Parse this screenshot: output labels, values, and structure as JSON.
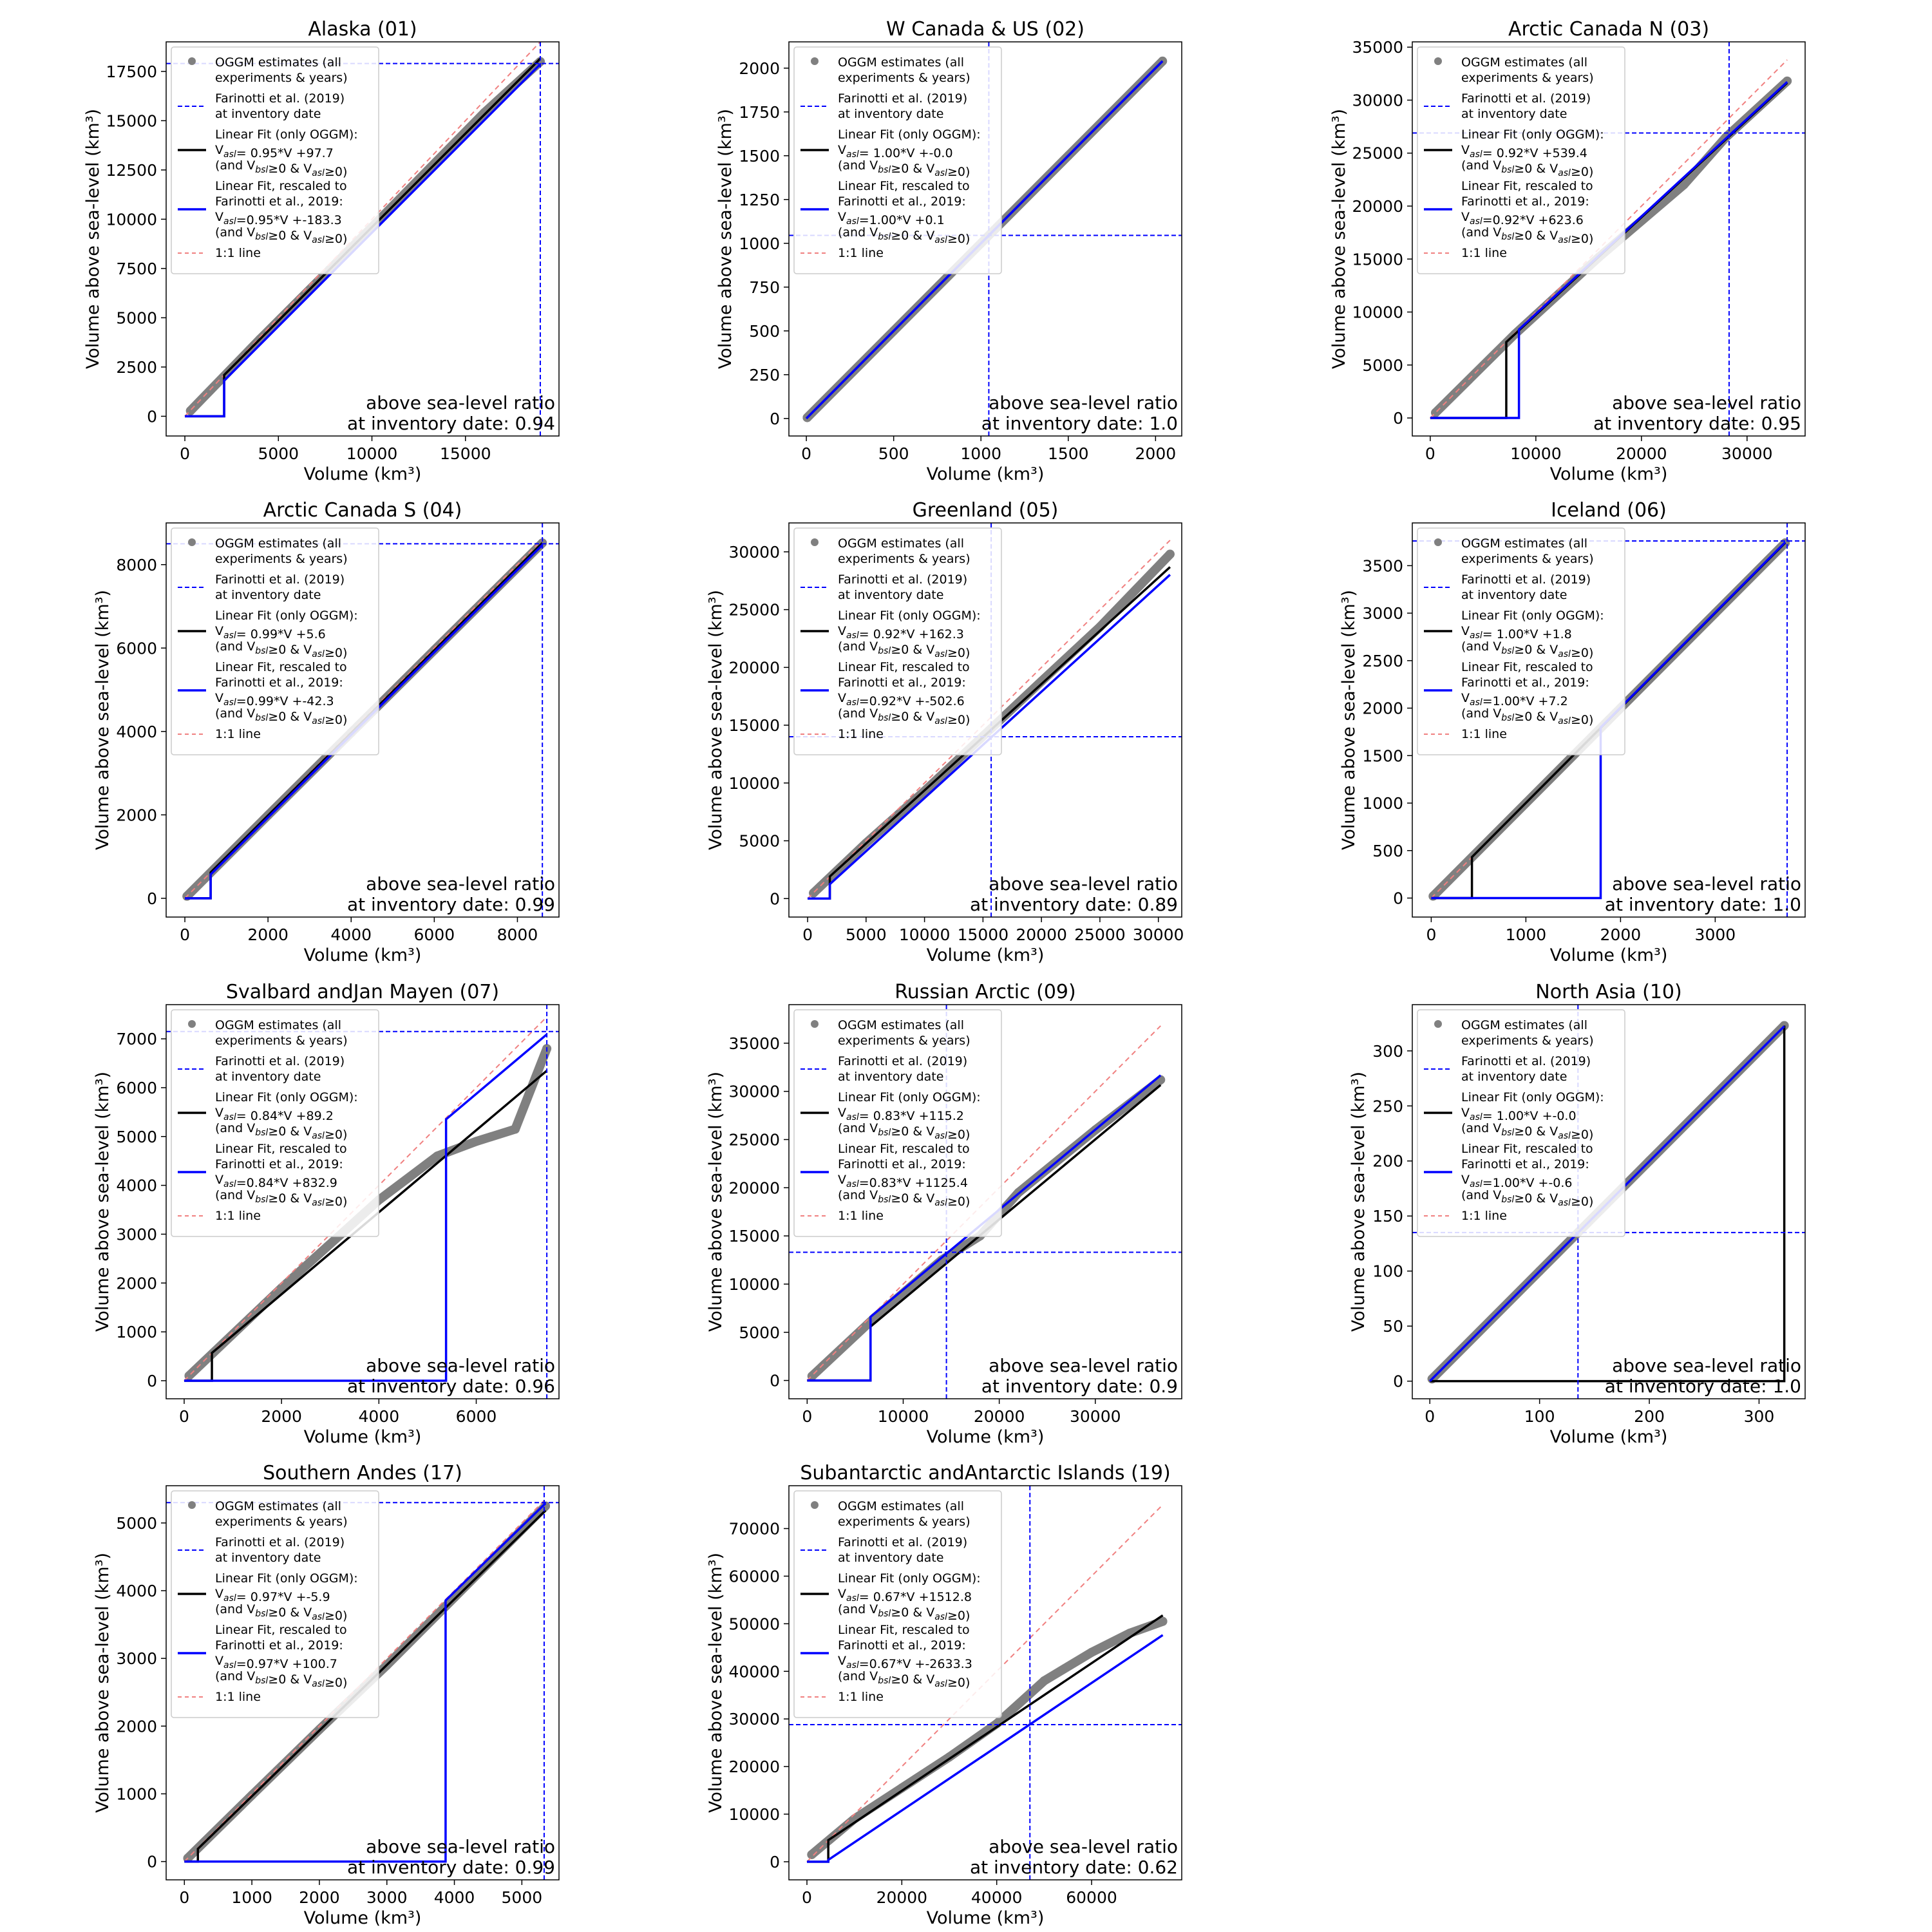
{
  "chart_data": [
    {
      "type": "scatter",
      "title": "Alaska (01)",
      "xlabel": "Volume (km³)",
      "ylabel": "Volume above sea-level (km³)",
      "xlim": [
        -1000,
        20000
      ],
      "ylim": [
        -1000,
        19000
      ],
      "xticks": [
        0,
        5000,
        10000,
        15000
      ],
      "yticks": [
        0,
        2500,
        5000,
        7500,
        10000,
        12500,
        15000,
        17500
      ],
      "farinotti_volume": 19000,
      "farinotti_volume_asl": 17900,
      "ogg_points": [
        [
          300,
          280
        ],
        [
          4000,
          3900
        ],
        [
          10000,
          9600
        ],
        [
          16000,
          15400
        ],
        [
          19000,
          18000
        ]
      ],
      "fit_ogg": {
        "slope": 0.95,
        "intercept": 97.7,
        "step_x": 2100
      },
      "fit_rescaled": {
        "slope": 0.95,
        "intercept": -183.3,
        "step_x": 2100
      },
      "legend": {
        "ogg": [
          "OGGM estimates (all",
          "experiments & years)"
        ],
        "farinotti": [
          "Farinotti et al. (2019)",
          "at inventory date"
        ],
        "fit_ogg": [
          "Linear Fit (only OGGM):",
          "V_asl= 0.95*V +97.7",
          "(and V_bsl≥0 & V_asl≥0)"
        ],
        "fit_rescaled": [
          "Linear Fit, rescaled to",
          "Farinotti et al., 2019:",
          "V_asl=0.95*V +-183.3",
          "(and V_bsl≥0 & V_asl≥0)"
        ],
        "one_to_one": [
          "1:1 line"
        ]
      },
      "ratio_text": [
        "above sea-level ratio",
        "at inventory date: 0.94"
      ]
    },
    {
      "type": "scatter",
      "title": "W Canada & US (02)",
      "xlabel": "Volume (km³)",
      "ylabel": "Volume above sea-level (km³)",
      "xlim": [
        -100,
        2150
      ],
      "ylim": [
        -100,
        2150
      ],
      "xticks": [
        0,
        500,
        1000,
        1500,
        2000
      ],
      "yticks": [
        0,
        250,
        500,
        750,
        1000,
        1250,
        1500,
        1750,
        2000
      ],
      "farinotti_volume": 1045,
      "farinotti_volume_asl": 1045,
      "ogg_points": [
        [
          5,
          5
        ],
        [
          500,
          500
        ],
        [
          1000,
          1000
        ],
        [
          1500,
          1500
        ],
        [
          2040,
          2040
        ]
      ],
      "fit_ogg": {
        "slope": 1.0,
        "intercept": 0.0,
        "step_x": 0
      },
      "fit_rescaled": {
        "slope": 1.0,
        "intercept": 0.1,
        "step_x": 0
      },
      "legend": {
        "ogg": [
          "OGGM estimates (all",
          "experiments & years)"
        ],
        "farinotti": [
          "Farinotti et al. (2019)",
          "at inventory date"
        ],
        "fit_ogg": [
          "Linear Fit (only OGGM):",
          "V_asl= 1.00*V +-0.0",
          "(and V_bsl≥0 & V_asl≥0)"
        ],
        "fit_rescaled": [
          "Linear Fit, rescaled to",
          "Farinotti et al., 2019:",
          "V_asl=1.00*V +0.1",
          "(and V_bsl≥0 & V_asl≥0)"
        ],
        "one_to_one": [
          "1:1 line"
        ]
      },
      "ratio_text": [
        "above sea-level ratio",
        "at inventory date: 1.0"
      ]
    },
    {
      "type": "scatter",
      "title": "Arctic Canada N (03)",
      "xlabel": "Volume (km³)",
      "ylabel": "Volume above sea-level (km³)",
      "xlim": [
        -1700,
        35500
      ],
      "ylim": [
        -1700,
        35500
      ],
      "xticks": [
        0,
        10000,
        20000,
        30000
      ],
      "yticks": [
        0,
        5000,
        10000,
        15000,
        20000,
        25000,
        30000,
        35000
      ],
      "farinotti_volume": 28300,
      "farinotti_volume_asl": 26900,
      "ogg_points": [
        [
          500,
          500
        ],
        [
          8000,
          7900
        ],
        [
          16000,
          15200
        ],
        [
          24000,
          22000
        ],
        [
          28000,
          26500
        ],
        [
          33800,
          31800
        ]
      ],
      "fit_ogg": {
        "slope": 0.92,
        "intercept": 539.4,
        "step_x": 7200
      },
      "fit_rescaled": {
        "slope": 0.92,
        "intercept": 623.6,
        "step_x": 8400
      },
      "legend": {
        "ogg": [
          "OGGM estimates (all",
          "experiments & years)"
        ],
        "farinotti": [
          "Farinotti et al. (2019)",
          "at inventory date"
        ],
        "fit_ogg": [
          "Linear Fit (only OGGM):",
          "V_asl= 0.92*V +539.4",
          "(and V_bsl≥0 & V_asl≥0)"
        ],
        "fit_rescaled": [
          "Linear Fit, rescaled to",
          "Farinotti et al., 2019:",
          "V_asl=0.92*V +623.6",
          "(and V_bsl≥0 & V_asl≥0)"
        ],
        "one_to_one": [
          "1:1 line"
        ]
      },
      "ratio_text": [
        "above sea-level ratio",
        "at inventory date: 0.95"
      ]
    },
    {
      "type": "scatter",
      "title": "Arctic Canada S (04)",
      "xlabel": "Volume (km³)",
      "ylabel": "Volume above sea-level (km³)",
      "xlim": [
        -450,
        9000
      ],
      "ylim": [
        -450,
        9000
      ],
      "xticks": [
        0,
        2000,
        4000,
        6000,
        8000
      ],
      "yticks": [
        0,
        2000,
        4000,
        6000,
        8000
      ],
      "farinotti_volume": 8600,
      "farinotti_volume_asl": 8500,
      "ogg_points": [
        [
          50,
          50
        ],
        [
          2000,
          1990
        ],
        [
          4000,
          3970
        ],
        [
          6000,
          5950
        ],
        [
          8600,
          8520
        ]
      ],
      "fit_ogg": {
        "slope": 0.99,
        "intercept": 5.6,
        "step_x": 620
      },
      "fit_rescaled": {
        "slope": 0.99,
        "intercept": -42.3,
        "step_x": 620
      },
      "legend": {
        "ogg": [
          "OGGM estimates (all",
          "experiments & years)"
        ],
        "farinotti": [
          "Farinotti et al. (2019)",
          "at inventory date"
        ],
        "fit_ogg": [
          "Linear Fit (only OGGM):",
          "V_asl= 0.99*V +5.6",
          "(and V_bsl≥0 & V_asl≥0)"
        ],
        "fit_rescaled": [
          "Linear Fit, rescaled to",
          "Farinotti et al., 2019:",
          "V_asl=0.99*V +-42.3",
          "(and V_bsl≥0 & V_asl≥0)"
        ],
        "one_to_one": [
          "1:1 line"
        ]
      },
      "ratio_text": [
        "above sea-level ratio",
        "at inventory date: 0.99"
      ]
    },
    {
      "type": "scatter",
      "title": "Greenland (05)",
      "xlabel": "Volume (km³)",
      "ylabel": "Volume above sea-level (km³)",
      "xlim": [
        -1600,
        32000
      ],
      "ylim": [
        -1600,
        32500
      ],
      "xticks": [
        0,
        5000,
        10000,
        15000,
        20000,
        25000,
        30000
      ],
      "yticks": [
        0,
        5000,
        10000,
        15000,
        20000,
        25000,
        30000
      ],
      "farinotti_volume": 15700,
      "farinotti_volume_asl": 14000,
      "ogg_points": [
        [
          500,
          480
        ],
        [
          5000,
          4800
        ],
        [
          10000,
          9300
        ],
        [
          20000,
          18800
        ],
        [
          25000,
          23500
        ],
        [
          31000,
          29800
        ]
      ],
      "fit_ogg": {
        "slope": 0.92,
        "intercept": 162.3,
        "step_x": 1900
      },
      "fit_rescaled": {
        "slope": 0.92,
        "intercept": -502.6,
        "step_x": 1900
      },
      "legend": {
        "ogg": [
          "OGGM estimates (all",
          "experiments & years)"
        ],
        "farinotti": [
          "Farinotti et al. (2019)",
          "at inventory date"
        ],
        "fit_ogg": [
          "Linear Fit (only OGGM):",
          "V_asl= 0.92*V +162.3",
          "(and V_bsl≥0 & V_asl≥0)"
        ],
        "fit_rescaled": [
          "Linear Fit, rescaled to",
          "Farinotti et al., 2019:",
          "V_asl=0.92*V +-502.6",
          "(and V_bsl≥0 & V_asl≥0)"
        ],
        "one_to_one": [
          "1:1 line"
        ]
      },
      "ratio_text": [
        "above sea-level ratio",
        "at inventory date: 0.89"
      ]
    },
    {
      "type": "scatter",
      "title": "Iceland (06)",
      "xlabel": "Volume (km³)",
      "ylabel": "Volume above sea-level (km³)",
      "xlim": [
        -200,
        3950
      ],
      "ylim": [
        -200,
        3950
      ],
      "xticks": [
        0,
        1000,
        2000,
        3000
      ],
      "yticks": [
        0,
        500,
        1000,
        1500,
        2000,
        2500,
        3000,
        3500
      ],
      "farinotti_volume": 3760,
      "farinotti_volume_asl": 3760,
      "ogg_points": [
        [
          20,
          20
        ],
        [
          1000,
          1000
        ],
        [
          2000,
          2000
        ],
        [
          3000,
          3000
        ],
        [
          3740,
          3740
        ]
      ],
      "fit_ogg": {
        "slope": 1.0,
        "intercept": 1.8,
        "step_x": 430
      },
      "fit_rescaled": {
        "slope": 1.0,
        "intercept": 7.2,
        "step_x": 1790
      },
      "legend": {
        "ogg": [
          "OGGM estimates (all",
          "experiments & years)"
        ],
        "farinotti": [
          "Farinotti et al. (2019)",
          "at inventory date"
        ],
        "fit_ogg": [
          "Linear Fit (only OGGM):",
          "V_asl= 1.00*V +1.8",
          "(and V_bsl≥0 & V_asl≥0)"
        ],
        "fit_rescaled": [
          "Linear Fit, rescaled to",
          "Farinotti et al., 2019:",
          "V_asl=1.00*V +7.2",
          "(and V_bsl≥0 & V_asl≥0)"
        ],
        "one_to_one": [
          "1:1 line"
        ]
      },
      "ratio_text": [
        "above sea-level ratio",
        "at inventory date: 1.0"
      ]
    },
    {
      "type": "scatter",
      "title": "Svalbard andJan Mayen (07)",
      "xlabel": "Volume (km³)",
      "ylabel": "Volume above sea-level (km³)",
      "xlim": [
        -370,
        7700
      ],
      "ylim": [
        -370,
        7700
      ],
      "xticks": [
        0,
        2000,
        4000,
        6000
      ],
      "yticks": [
        0,
        1000,
        2000,
        3000,
        4000,
        5000,
        6000,
        7000
      ],
      "farinotti_volume": 7450,
      "farinotti_volume_asl": 7150,
      "ogg_points": [
        [
          100,
          100
        ],
        [
          2000,
          1900
        ],
        [
          4000,
          3700
        ],
        [
          5200,
          4600
        ],
        [
          6000,
          4900
        ],
        [
          6800,
          5150
        ],
        [
          7450,
          6800
        ]
      ],
      "fit_ogg": {
        "slope": 0.84,
        "intercept": 89.2,
        "step_x": 570
      },
      "fit_rescaled": {
        "slope": 0.84,
        "intercept": 832.9,
        "step_x": 5380
      },
      "legend": {
        "ogg": [
          "OGGM estimates (all",
          "experiments & years)"
        ],
        "farinotti": [
          "Farinotti et al. (2019)",
          "at inventory date"
        ],
        "fit_ogg": [
          "Linear Fit (only OGGM):",
          "V_asl= 0.84*V +89.2",
          "(and V_bsl≥0 & V_asl≥0)"
        ],
        "fit_rescaled": [
          "Linear Fit, rescaled to",
          "Farinotti et al., 2019:",
          "V_asl=0.84*V +832.9",
          "(and V_bsl≥0 & V_asl≥0)"
        ],
        "one_to_one": [
          "1:1 line"
        ]
      },
      "ratio_text": [
        "above sea-level ratio",
        "at inventory date: 0.96"
      ]
    },
    {
      "type": "scatter",
      "title": "Russian Arctic (09)",
      "xlabel": "Volume (km³)",
      "ylabel": "Volume above sea-level (km³)",
      "xlim": [
        -1900,
        39000
      ],
      "ylim": [
        -1900,
        39000
      ],
      "xticks": [
        0,
        10000,
        20000,
        30000
      ],
      "yticks": [
        0,
        5000,
        10000,
        15000,
        20000,
        25000,
        30000,
        35000
      ],
      "farinotti_volume": 14500,
      "farinotti_volume_asl": 13300,
      "ogg_points": [
        [
          500,
          450
        ],
        [
          7000,
          6500
        ],
        [
          14000,
          12500
        ],
        [
          18000,
          15000
        ],
        [
          22000,
          19500
        ],
        [
          30000,
          26000
        ],
        [
          36800,
          31200
        ]
      ],
      "fit_ogg": {
        "slope": 0.83,
        "intercept": 115.2,
        "step_x": 6600
      },
      "fit_rescaled": {
        "slope": 0.83,
        "intercept": 1125.4,
        "step_x": 6600
      },
      "legend": {
        "ogg": [
          "OGGM estimates (all",
          "experiments & years)"
        ],
        "farinotti": [
          "Farinotti et al. (2019)",
          "at inventory date"
        ],
        "fit_ogg": [
          "Linear Fit (only OGGM):",
          "V_asl= 0.83*V +115.2",
          "(and V_bsl≥0 & V_asl≥0)"
        ],
        "fit_rescaled": [
          "Linear Fit, rescaled to",
          "Farinotti et al., 2019:",
          "V_asl=0.83*V +1125.4",
          "(and V_bsl≥0 & V_asl≥0)"
        ],
        "one_to_one": [
          "1:1 line"
        ]
      },
      "ratio_text": [
        "above sea-level ratio",
        "at inventory date: 0.9"
      ]
    },
    {
      "type": "scatter",
      "title": "North Asia (10)",
      "xlabel": "Volume (km³)",
      "ylabel": "Volume above sea-level (km³)",
      "xlim": [
        -16,
        342
      ],
      "ylim": [
        -16,
        342
      ],
      "xticks": [
        0,
        100,
        200,
        300
      ],
      "yticks": [
        0,
        50,
        100,
        150,
        200,
        250,
        300
      ],
      "farinotti_volume": 135,
      "farinotti_volume_asl": 135,
      "ogg_points": [
        [
          2,
          2
        ],
        [
          100,
          100
        ],
        [
          200,
          200
        ],
        [
          323,
          323
        ]
      ],
      "fit_ogg": {
        "slope": 1.0,
        "intercept": 0.0,
        "step_x": 323
      },
      "fit_rescaled": {
        "slope": 1.0,
        "intercept": -0.6,
        "step_x": 0
      },
      "legend": {
        "ogg": [
          "OGGM estimates (all",
          "experiments & years)"
        ],
        "farinotti": [
          "Farinotti et al. (2019)",
          "at inventory date"
        ],
        "fit_ogg": [
          "Linear Fit (only OGGM):",
          "V_asl= 1.00*V +-0.0",
          "(and V_bsl≥0 & V_asl≥0)"
        ],
        "fit_rescaled": [
          "Linear Fit, rescaled to",
          "Farinotti et al., 2019:",
          "V_asl=1.00*V +-0.6",
          "(and V_bsl≥0 & V_asl≥0)"
        ],
        "one_to_one": [
          "1:1 line"
        ]
      },
      "ratio_text": [
        "above sea-level ratio",
        "at inventory date: 1.0"
      ]
    },
    {
      "type": "scatter",
      "title": "Southern Andes (17)",
      "xlabel": "Volume (km³)",
      "ylabel": "Volume above sea-level (km³)",
      "xlim": [
        -270,
        5550
      ],
      "ylim": [
        -270,
        5550
      ],
      "xticks": [
        0,
        1000,
        2000,
        3000,
        4000,
        5000
      ],
      "yticks": [
        0,
        1000,
        2000,
        3000,
        4000,
        5000
      ],
      "farinotti_volume": 5330,
      "farinotti_volume_asl": 5300,
      "ogg_points": [
        [
          50,
          50
        ],
        [
          1000,
          980
        ],
        [
          2000,
          1950
        ],
        [
          3000,
          2900
        ],
        [
          4000,
          3900
        ],
        [
          5350,
          5250
        ]
      ],
      "fit_ogg": {
        "slope": 0.97,
        "intercept": -5.9,
        "step_x": 200
      },
      "fit_rescaled": {
        "slope": 0.97,
        "intercept": 100.7,
        "step_x": 3870
      },
      "legend": {
        "ogg": [
          "OGGM estimates (all",
          "experiments & years)"
        ],
        "farinotti": [
          "Farinotti et al. (2019)",
          "at inventory date"
        ],
        "fit_ogg": [
          "Linear Fit (only OGGM):",
          "V_asl= 0.97*V +-5.9",
          "(and V_bsl≥0 & V_asl≥0)"
        ],
        "fit_rescaled": [
          "Linear Fit, rescaled to",
          "Farinotti et al., 2019:",
          "V_asl=0.97*V +100.7",
          "(and V_bsl≥0 & V_asl≥0)"
        ],
        "one_to_one": [
          "1:1 line"
        ]
      },
      "ratio_text": [
        "above sea-level ratio",
        "at inventory date: 0.99"
      ]
    },
    {
      "type": "scatter",
      "title": "Subantarctic andAntarctic Islands (19)",
      "xlabel": "Volume (km³)",
      "ylabel": "Volume above sea-level (km³)",
      "xlim": [
        -3800,
        79000
      ],
      "ylim": [
        -3800,
        79000
      ],
      "xticks": [
        0,
        20000,
        40000,
        60000
      ],
      "yticks": [
        0,
        10000,
        20000,
        30000,
        40000,
        50000,
        60000,
        70000
      ],
      "farinotti_volume": 47000,
      "farinotti_volume_asl": 28800,
      "ogg_points": [
        [
          1000,
          1500
        ],
        [
          10000,
          9000
        ],
        [
          20000,
          15500
        ],
        [
          30000,
          22000
        ],
        [
          40000,
          29000
        ],
        [
          50000,
          38000
        ],
        [
          60000,
          44000
        ],
        [
          68000,
          48000
        ],
        [
          75000,
          50500
        ]
      ],
      "fit_ogg": {
        "slope": 0.67,
        "intercept": 1512.8,
        "step_x": 4500
      },
      "fit_rescaled": {
        "slope": 0.67,
        "intercept": -2633.3,
        "step_x": 4500
      },
      "legend": {
        "ogg": [
          "OGGM estimates (all",
          "experiments & years)"
        ],
        "farinotti": [
          "Farinotti et al. (2019)",
          "at inventory date"
        ],
        "fit_ogg": [
          "Linear Fit (only OGGM):",
          "V_asl= 0.67*V +1512.8",
          "(and V_bsl≥0 & V_asl≥0)"
        ],
        "fit_rescaled": [
          "Linear Fit, rescaled to",
          "Farinotti et al., 2019:",
          "V_asl=0.67*V +-2633.3",
          "(and V_bsl≥0 & V_asl≥0)"
        ],
        "one_to_one": [
          "1:1 line"
        ]
      },
      "ratio_text": [
        "above sea-level ratio",
        "at inventory date: 0.62"
      ]
    }
  ],
  "colors": {
    "ogg_points": "#808080",
    "farinotti": "#0000ff",
    "fit_ogg": "#000000",
    "fit_rescaled": "#0000ff",
    "one_to_one": "#f08080",
    "legend_frame": "#cccccc"
  }
}
